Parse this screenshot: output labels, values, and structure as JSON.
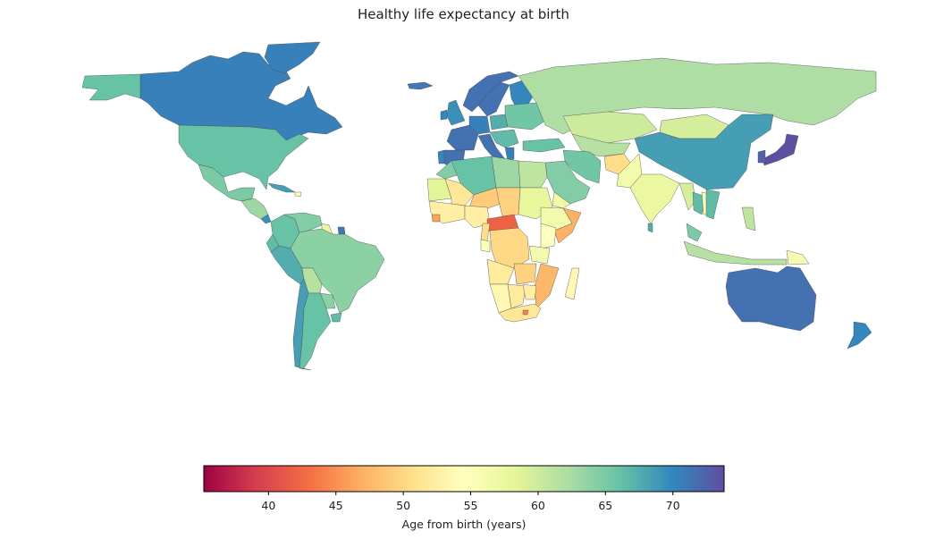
{
  "chart_data": {
    "type": "choropleth",
    "title": "Healthy life expectancy at birth",
    "colormap": "Spectral",
    "colorbar": {
      "label": "Age from birth (years)",
      "range": [
        35.2,
        73.8
      ],
      "ticks": [
        40,
        45,
        50,
        55,
        60,
        65,
        70
      ],
      "tick_labels": [
        "40",
        "45",
        "50",
        "55",
        "60",
        "65",
        "70"
      ],
      "orientation": "horizontal",
      "placement": "bottom"
    },
    "regions": [
      {
        "name": "Canada",
        "value": 70.5
      },
      {
        "name": "Greenland",
        "value": 70.5
      },
      {
        "name": "United States",
        "value": 66.0
      },
      {
        "name": "Alaska",
        "value": 66.0
      },
      {
        "name": "Mexico",
        "value": 65.0
      },
      {
        "name": "Central America",
        "value": 63.0
      },
      {
        "name": "Costa Rica",
        "value": 69.5
      },
      {
        "name": "Cuba",
        "value": 68.5
      },
      {
        "name": "Haiti",
        "value": 55.0
      },
      {
        "name": "Colombia",
        "value": 66.0
      },
      {
        "name": "Venezuela",
        "value": 64.5
      },
      {
        "name": "Guyana",
        "value": 57.5
      },
      {
        "name": "French Guiana",
        "value": 71.0
      },
      {
        "name": "Brazil",
        "value": 64.0
      },
      {
        "name": "Peru",
        "value": 67.5
      },
      {
        "name": "Ecuador",
        "value": 66.5
      },
      {
        "name": "Bolivia",
        "value": 61.5
      },
      {
        "name": "Paraguay",
        "value": 64.0
      },
      {
        "name": "Chile",
        "value": 68.5
      },
      {
        "name": "Argentina",
        "value": 66.0
      },
      {
        "name": "Uruguay",
        "value": 66.5
      },
      {
        "name": "Iceland",
        "value": 71.0
      },
      {
        "name": "Norway",
        "value": 71.5
      },
      {
        "name": "Sweden",
        "value": 71.5
      },
      {
        "name": "Finland",
        "value": 70.0
      },
      {
        "name": "United Kingdom",
        "value": 69.5
      },
      {
        "name": "Ireland",
        "value": 70.0
      },
      {
        "name": "France",
        "value": 71.5
      },
      {
        "name": "Spain",
        "value": 71.5
      },
      {
        "name": "Portugal",
        "value": 70.0
      },
      {
        "name": "Germany",
        "value": 70.5
      },
      {
        "name": "Italy",
        "value": 71.5
      },
      {
        "name": "Poland",
        "value": 67.5
      },
      {
        "name": "Eastern Europe",
        "value": 65.5
      },
      {
        "name": "Balkans",
        "value": 66.5
      },
      {
        "name": "Greece",
        "value": 70.5
      },
      {
        "name": "Turkey",
        "value": 66.0
      },
      {
        "name": "Russia",
        "value": 62.0
      },
      {
        "name": "Kazakhstan",
        "value": 60.0
      },
      {
        "name": "Central Asia",
        "value": 61.5
      },
      {
        "name": "Mongolia",
        "value": 59.5
      },
      {
        "name": "China",
        "value": 68.5
      },
      {
        "name": "Japan",
        "value": 73.8
      },
      {
        "name": "South Korea",
        "value": 72.5
      },
      {
        "name": "Iran",
        "value": 65.5
      },
      {
        "name": "Saudi Arabia",
        "value": 64.5
      },
      {
        "name": "Yemen",
        "value": 57.0
      },
      {
        "name": "Afghanistan",
        "value": 50.5
      },
      {
        "name": "Pakistan",
        "value": 56.5
      },
      {
        "name": "India",
        "value": 57.5
      },
      {
        "name": "Sri Lanka",
        "value": 67.5
      },
      {
        "name": "Myanmar",
        "value": 59.5
      },
      {
        "name": "Thailand",
        "value": 66.5
      },
      {
        "name": "Laos",
        "value": 55.5
      },
      {
        "name": "Vietnam",
        "value": 66.5
      },
      {
        "name": "Malaysia",
        "value": 65.0
      },
      {
        "name": "Indonesia",
        "value": 61.5
      },
      {
        "name": "Philippines",
        "value": 61.0
      },
      {
        "name": "Papua New Guinea",
        "value": 56.0
      },
      {
        "name": "Australia",
        "value": 71.5
      },
      {
        "name": "New Zealand",
        "value": 70.0
      },
      {
        "name": "Morocco",
        "value": 64.5
      },
      {
        "name": "Algeria",
        "value": 66.0
      },
      {
        "name": "Libya",
        "value": 63.0
      },
      {
        "name": "Egypt",
        "value": 61.0
      },
      {
        "name": "Mauritania",
        "value": 58.5
      },
      {
        "name": "Mali",
        "value": 51.5
      },
      {
        "name": "Niger",
        "value": 49.0
      },
      {
        "name": "Chad",
        "value": 49.5
      },
      {
        "name": "Sudan",
        "value": 58.0
      },
      {
        "name": "Ethiopia",
        "value": 56.5
      },
      {
        "name": "Somalia",
        "value": 47.0
      },
      {
        "name": "West Africa",
        "value": 52.5
      },
      {
        "name": "Sierra Leone",
        "value": 46.0
      },
      {
        "name": "Nigeria",
        "value": 52.5
      },
      {
        "name": "Central African Republic",
        "value": 42.0
      },
      {
        "name": "Cameroon",
        "value": 50.5
      },
      {
        "name": "Gabon",
        "value": 55.0
      },
      {
        "name": "DR Congo",
        "value": 50.0
      },
      {
        "name": "Kenya",
        "value": 54.5
      },
      {
        "name": "Tanzania",
        "value": 56.5
      },
      {
        "name": "Angola",
        "value": 52.0
      },
      {
        "name": "Zambia",
        "value": 49.5
      },
      {
        "name": "Mozambique",
        "value": 47.5
      },
      {
        "name": "Namibia",
        "value": 53.5
      },
      {
        "name": "Botswana",
        "value": 52.0
      },
      {
        "name": "Zimbabwe",
        "value": 52.5
      },
      {
        "name": "South Africa",
        "value": 51.5
      },
      {
        "name": "Lesotho",
        "value": 44.0
      },
      {
        "name": "Madagascar",
        "value": 53.5
      }
    ]
  }
}
